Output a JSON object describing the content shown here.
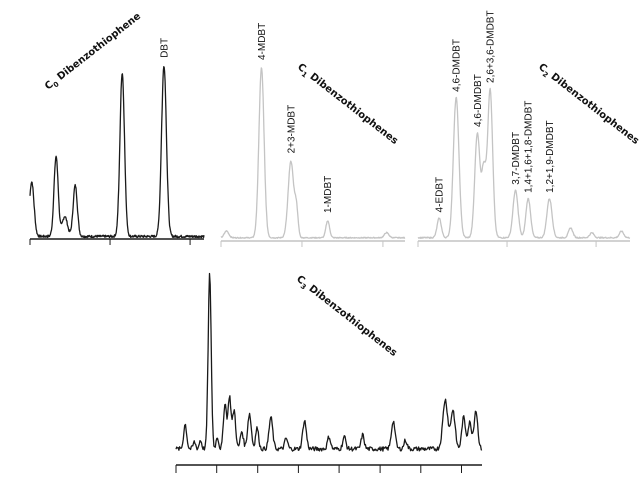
{
  "chart_data": [
    {
      "id": "c0",
      "type": "line",
      "title_main": "C",
      "title_sub": "0",
      "title_rest": " Dibenzothiophene",
      "xlim": [
        0,
        100
      ],
      "ylim": [
        0,
        100
      ],
      "color": "#1a1a1a",
      "x_ticks": [
        0,
        46,
        92
      ],
      "peaks": [
        {
          "x": 1,
          "y": 30,
          "w": 1.3
        },
        {
          "x": 15,
          "y": 44,
          "w": 1.2
        },
        {
          "x": 20,
          "y": 11,
          "w": 1.5
        },
        {
          "x": 26,
          "y": 28,
          "w": 1.2
        },
        {
          "x": 53,
          "y": 90,
          "w": 1.3
        },
        {
          "x": 77,
          "y": 94,
          "w": 1.4
        }
      ],
      "annotations": [
        {
          "text": "DBT",
          "x": 77
        }
      ]
    },
    {
      "id": "c1",
      "type": "line",
      "title_main": "C",
      "title_sub": "1",
      "title_rest": " Dibenzothiophenes",
      "xlim": [
        0,
        100
      ],
      "ylim": [
        0,
        100
      ],
      "color": "#c4c4c4",
      "x_ticks": [
        0,
        44,
        88
      ],
      "peaks": [
        {
          "x": 3,
          "y": 4,
          "w": 1.2
        },
        {
          "x": 22,
          "y": 100,
          "w": 1.4
        },
        {
          "x": 38,
          "y": 45,
          "w": 1.5
        },
        {
          "x": 41,
          "y": 16,
          "w": 0.9
        },
        {
          "x": 58,
          "y": 10,
          "w": 1.0
        },
        {
          "x": 90,
          "y": 3,
          "w": 1.2
        }
      ],
      "annotations": [
        {
          "text": "4-MDBT",
          "x": 22
        },
        {
          "text": "2+3-MDBT",
          "x": 38
        },
        {
          "text": "1-MDBT",
          "x": 58
        }
      ]
    },
    {
      "id": "c2",
      "type": "line",
      "title_main": "C",
      "title_sub": "2",
      "title_rest": " Dibenzothiophenes",
      "xlim": [
        0,
        100
      ],
      "ylim": [
        0,
        100
      ],
      "color": "#c4c4c4",
      "x_ticks": [
        0,
        42,
        84
      ],
      "peaks": [
        {
          "x": 10,
          "y": 12,
          "w": 1.0
        },
        {
          "x": 18,
          "y": 86,
          "w": 1.3
        },
        {
          "x": 28,
          "y": 64,
          "w": 1.2
        },
        {
          "x": 31,
          "y": 40,
          "w": 1.0
        },
        {
          "x": 34,
          "y": 91,
          "w": 1.2
        },
        {
          "x": 46,
          "y": 29,
          "w": 1.2
        },
        {
          "x": 52,
          "y": 24,
          "w": 1.1
        },
        {
          "x": 62,
          "y": 24,
          "w": 1.2
        },
        {
          "x": 72,
          "y": 6,
          "w": 1.0
        },
        {
          "x": 82,
          "y": 3,
          "w": 1.0
        },
        {
          "x": 96,
          "y": 4,
          "w": 1.0
        }
      ],
      "annotations": [
        {
          "text": "4-EDBT",
          "x": 10
        },
        {
          "text": "4,6-DMDBT",
          "x": 18
        },
        {
          "text": "4,6-DMDBT",
          "x": 28
        },
        {
          "text": "2,6+3,6-DMDBT",
          "x": 34
        },
        {
          "text": "3,7-DMDBT",
          "x": 46
        },
        {
          "text": "1,4+1,6+1,8-DMDBT",
          "x": 52
        },
        {
          "text": "1,2+1,9-DMDBT",
          "x": 62
        }
      ]
    },
    {
      "id": "c3",
      "type": "line",
      "title_main": "C",
      "title_sub": "3",
      "title_rest": " Dibenzothiophenes",
      "xlim": [
        0,
        100
      ],
      "ylim": [
        0,
        100
      ],
      "color": "#1a1a1a",
      "x_ticks": [
        0,
        13.3,
        26.7,
        40,
        53.3,
        66.7,
        80,
        93.3
      ],
      "peaks": [
        {
          "x": 3,
          "y": 14,
          "w": 0.5
        },
        {
          "x": 6,
          "y": 4,
          "w": 0.4
        },
        {
          "x": 8,
          "y": 5,
          "w": 0.4
        },
        {
          "x": 11,
          "y": 100,
          "w": 0.5
        },
        {
          "x": 13.5,
          "y": 7,
          "w": 0.4
        },
        {
          "x": 16,
          "y": 26,
          "w": 0.5
        },
        {
          "x": 17.5,
          "y": 30,
          "w": 0.5
        },
        {
          "x": 19,
          "y": 22,
          "w": 0.5
        },
        {
          "x": 21.5,
          "y": 10,
          "w": 0.5
        },
        {
          "x": 24,
          "y": 20,
          "w": 0.6
        },
        {
          "x": 26.5,
          "y": 12,
          "w": 0.5
        },
        {
          "x": 31,
          "y": 18,
          "w": 0.6
        },
        {
          "x": 36,
          "y": 6,
          "w": 0.5
        },
        {
          "x": 42,
          "y": 16,
          "w": 0.6
        },
        {
          "x": 50,
          "y": 7,
          "w": 0.5
        },
        {
          "x": 55,
          "y": 7,
          "w": 0.5
        },
        {
          "x": 61,
          "y": 8,
          "w": 0.5
        },
        {
          "x": 71,
          "y": 16,
          "w": 0.6
        },
        {
          "x": 75,
          "y": 5,
          "w": 0.5
        },
        {
          "x": 88,
          "y": 28,
          "w": 0.8
        },
        {
          "x": 90.5,
          "y": 22,
          "w": 0.7
        },
        {
          "x": 94,
          "y": 18,
          "w": 0.6
        },
        {
          "x": 96,
          "y": 15,
          "w": 0.6
        },
        {
          "x": 98,
          "y": 22,
          "w": 0.6
        }
      ],
      "annotations": []
    }
  ]
}
